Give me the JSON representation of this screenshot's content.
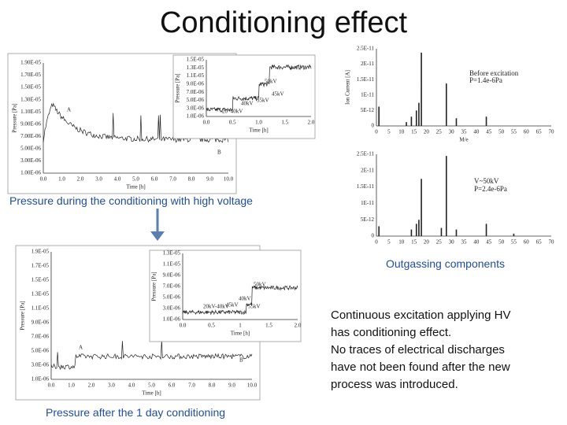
{
  "title": "Conditioning effect",
  "top_chart": {
    "caption": "Pressure during the conditioning with high voltage",
    "main": {
      "y_label": "Pressure [Pa]",
      "x_label": "Time [h]",
      "y_ticks": [
        "1.90E-05",
        "1.70E-05",
        "1.50E-05",
        "1.30E-05",
        "1.10E-05",
        "9.00E-06",
        "7.00E-06",
        "5.00E-06",
        "3.00E-06",
        "1.00E-06"
      ],
      "x_ticks": [
        "0.0",
        "1.0",
        "2.0",
        "3.0",
        "4.0",
        "5.0",
        "6.0",
        "7.0",
        "8.0",
        "9.0",
        "10.0"
      ],
      "annotations": [
        "A",
        "B"
      ]
    },
    "inset": {
      "y_label": "Pressure [Pa]",
      "x_label": "Time [h]",
      "y_ticks": [
        "1.5E-05",
        "1.3E-05",
        "1.1E-05",
        "9.0E-06",
        "7.0E-06",
        "5.0E-06",
        "3.0E-06",
        "1.0E-06"
      ],
      "x_ticks": [
        "0.0",
        "0.5",
        "1.0",
        "1.5",
        "2.0"
      ],
      "annotations": [
        "50kV",
        "45kV",
        "40kV",
        "35kV",
        "20~40kV"
      ]
    }
  },
  "bottom_chart": {
    "caption": "Pressure after the 1 day conditioning",
    "main": {
      "y_label": "Pressure [Pa]",
      "x_label": "Time [h]",
      "y_ticks": [
        "1.9E-05",
        "1.7E-05",
        "1.5E-05",
        "1.3E-05",
        "1.1E-05",
        "9.0E-06",
        "7.0E-06",
        "5.0E-06",
        "3.0E-06",
        "1.0E-06"
      ],
      "x_ticks": [
        "0.0",
        "1.0",
        "2.0",
        "3.0",
        "4.0",
        "5.0",
        "6.0",
        "7.0",
        "8.0",
        "9.0",
        "10.0"
      ],
      "annotations": [
        "A",
        "B"
      ]
    },
    "inset": {
      "y_label": "Pressure [Pa]",
      "x_label": "Time [h]",
      "y_ticks": [
        "1.3E-05",
        "1.1E-05",
        "9.0E-06",
        "7.0E-06",
        "5.0E-06",
        "3.0E-06",
        "1.0E-06"
      ],
      "x_ticks": [
        "0.0",
        "0.5",
        "1",
        "1.5",
        "2.0"
      ],
      "annotations": [
        "50kV",
        "40kV",
        "45kV",
        "55kV",
        "20kV-40kV"
      ]
    }
  },
  "spectra": {
    "caption": "Outgassing components",
    "before": {
      "y_label": "Ion Current [A]",
      "x_label": "M/e",
      "y_ticks": [
        "2.5E-11",
        "2E-11",
        "1.5E-11",
        "1E-11",
        "5E-12",
        "0"
      ],
      "x_ticks": [
        "0",
        "5",
        "10",
        "15",
        "20",
        "25",
        "30",
        "35",
        "40",
        "45",
        "50",
        "55",
        "60",
        "65",
        "70"
      ],
      "annotations": [
        "Before excitation",
        "P=1.4e-6Pa"
      ]
    },
    "after": {
      "y_ticks": [
        "2.5E-11",
        "2E-11",
        "1.5E-11",
        "1E-11",
        "5E-12",
        "0"
      ],
      "x_ticks": [
        "0",
        "5",
        "10",
        "15",
        "20",
        "25",
        "30",
        "35",
        "40",
        "45",
        "50",
        "55",
        "60",
        "65",
        "70"
      ],
      "annotations": [
        "V~50kV",
        "P=2.4e-6Pa"
      ]
    }
  },
  "conclusion": [
    "Continuous excitation applying HV",
    "has conditioning effect.",
    "No traces of electrical discharges",
    "have not been found after the new",
    "process was introduced."
  ]
}
